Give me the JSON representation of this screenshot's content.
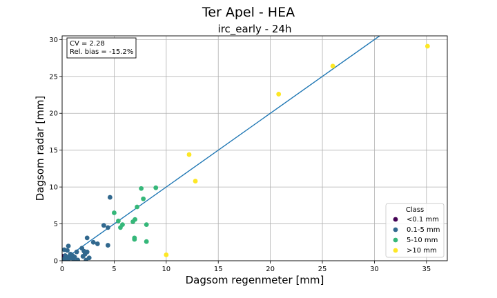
{
  "chart_data": {
    "type": "scatter",
    "suptitle": "Ter Apel - HEA",
    "title": "irc_early - 24h",
    "xlabel": "Dagsom regenmeter [mm]",
    "ylabel": "Dagsom radar [mm]",
    "xlim": [
      0,
      37
    ],
    "ylim": [
      0,
      30.5
    ],
    "xticks": [
      0,
      5,
      10,
      15,
      20,
      25,
      30,
      35
    ],
    "yticks": [
      0,
      5,
      10,
      15,
      20,
      25,
      30
    ],
    "grid": true,
    "annotation": {
      "lines": [
        "CV = 2.28",
        "Rel. bias = -15.2%"
      ],
      "placement": "top-left"
    },
    "fit_line": {
      "slope": 1.0,
      "intercept": 0.0,
      "color": "#1f77b4"
    },
    "legend": {
      "title": "Class",
      "placement": "lower-right"
    },
    "series": [
      {
        "name": "<0.1 mm",
        "color": "#440154",
        "points": [
          [
            0.0,
            0.4
          ],
          [
            0.05,
            0.1
          ],
          [
            0.1,
            0.6
          ],
          [
            0.0,
            0.0
          ],
          [
            0.05,
            0.3
          ],
          [
            0.08,
            0.0
          ]
        ]
      },
      {
        "name": "0.1-5 mm",
        "color": "#31688e",
        "points": [
          [
            0.1,
            0.2
          ],
          [
            0.2,
            1.5
          ],
          [
            0.3,
            0.0
          ],
          [
            0.3,
            0.7
          ],
          [
            0.4,
            0.3
          ],
          [
            0.5,
            1.4
          ],
          [
            0.6,
            0.1
          ],
          [
            0.6,
            2.0
          ],
          [
            0.7,
            0.6
          ],
          [
            0.8,
            0.9
          ],
          [
            0.9,
            0.4
          ],
          [
            1.0,
            0.7
          ],
          [
            1.1,
            0.0
          ],
          [
            1.2,
            0.5
          ],
          [
            1.4,
            1.2
          ],
          [
            1.5,
            0.1
          ],
          [
            1.9,
            1.7
          ],
          [
            2.0,
            0.6
          ],
          [
            2.1,
            1.3
          ],
          [
            2.2,
            0.9
          ],
          [
            2.3,
            0.1
          ],
          [
            2.4,
            1.2
          ],
          [
            2.4,
            3.1
          ],
          [
            2.6,
            0.4
          ],
          [
            3.0,
            2.5
          ],
          [
            3.4,
            2.3
          ],
          [
            4.0,
            4.8
          ],
          [
            4.4,
            4.5
          ],
          [
            4.4,
            2.1
          ],
          [
            4.6,
            8.6
          ]
        ]
      },
      {
        "name": "5-10 mm",
        "color": "#35b779",
        "points": [
          [
            5.0,
            6.5
          ],
          [
            5.4,
            5.4
          ],
          [
            5.6,
            4.5
          ],
          [
            5.8,
            4.9
          ],
          [
            6.8,
            5.3
          ],
          [
            7.0,
            5.6
          ],
          [
            6.95,
            2.9
          ],
          [
            6.95,
            3.1
          ],
          [
            7.2,
            7.3
          ],
          [
            7.6,
            9.8
          ],
          [
            7.8,
            8.4
          ],
          [
            8.1,
            4.9
          ],
          [
            8.1,
            2.6
          ],
          [
            9.0,
            9.9
          ]
        ]
      },
      {
        "name": ">10 mm",
        "color": "#fde725",
        "points": [
          [
            10.0,
            0.8
          ],
          [
            12.2,
            14.4
          ],
          [
            12.8,
            10.8
          ],
          [
            20.8,
            22.6
          ],
          [
            26.0,
            26.4
          ],
          [
            35.1,
            29.1
          ]
        ]
      }
    ]
  }
}
